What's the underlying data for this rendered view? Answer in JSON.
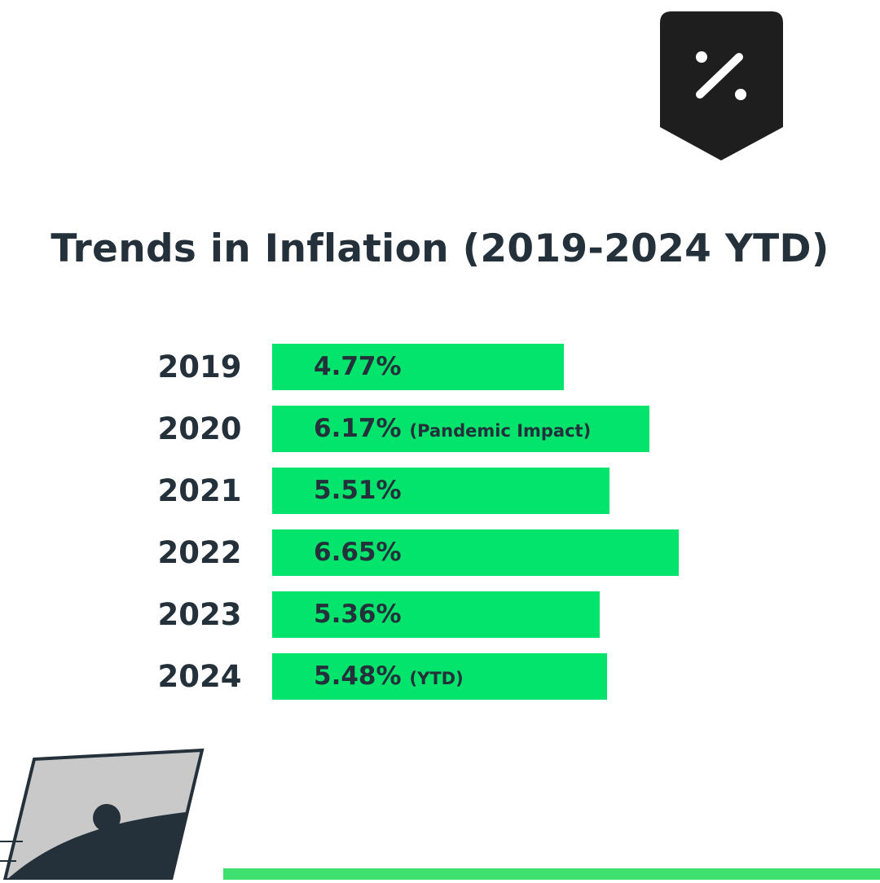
{
  "badge": {
    "icon": "percent-icon",
    "symbol": "%",
    "color": "#1e1e1e"
  },
  "title": "Trends in Inflation (2019-2024 YTD)",
  "colors": {
    "bar": "#02e46c",
    "text": "#24303a",
    "accent_line": "#3fe06f"
  },
  "chart_data": {
    "type": "bar",
    "orientation": "horizontal",
    "title": "Trends in Inflation (2019-2024 YTD)",
    "xlabel": "",
    "ylabel": "",
    "xlim": [
      0,
      7.3
    ],
    "grid": false,
    "categories": [
      "2019",
      "2020",
      "2021",
      "2022",
      "2023",
      "2024"
    ],
    "values": [
      4.77,
      6.17,
      5.51,
      6.65,
      5.36,
      5.48
    ],
    "data_labels": [
      "4.77%",
      "6.17%",
      "5.51%",
      "6.65%",
      "5.36%",
      "5.48%"
    ],
    "annotations": [
      "",
      "(Pandemic Impact)",
      "",
      "",
      "",
      "(YTD)"
    ]
  }
}
